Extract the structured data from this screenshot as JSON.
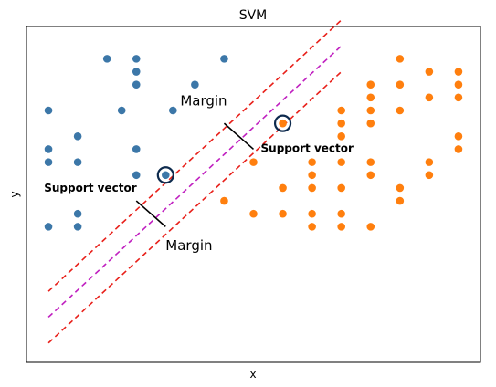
{
  "chart_data": {
    "type": "scatter",
    "title": "SVM",
    "xlabel": "x",
    "ylabel": "y",
    "xlim": [
      0,
      31
    ],
    "ylim": [
      0,
      26
    ],
    "grid": false,
    "ticks": "none",
    "colors": {
      "class_a": "#3c77a8",
      "class_b": "#ff7f0e",
      "boundary": "#c020c0",
      "margin_line": "#e8201a",
      "margin_marker": "#000000",
      "support_ring": "#0d2a4d"
    },
    "series": [
      {
        "class": "a",
        "points": [
          [
            5.5,
            23.5
          ],
          [
            7.5,
            23.5
          ],
          [
            13.5,
            23.5
          ],
          [
            7.5,
            22.5
          ],
          [
            7.5,
            21.5
          ],
          [
            11.5,
            21.5
          ],
          [
            1.5,
            19.5
          ],
          [
            6.5,
            19.5
          ],
          [
            10,
            19.5
          ],
          [
            3.5,
            17.5
          ],
          [
            1.5,
            16.5
          ],
          [
            7.5,
            16.5
          ],
          [
            1.5,
            15.5
          ],
          [
            3.5,
            15.5
          ],
          [
            7.5,
            14.5
          ],
          [
            9.5,
            14.5
          ],
          [
            3.5,
            11.5
          ],
          [
            1.5,
            10.5
          ],
          [
            3.5,
            10.5
          ]
        ]
      },
      {
        "class": "b",
        "points": [
          [
            25.5,
            23.5
          ],
          [
            27.5,
            22.5
          ],
          [
            29.5,
            22.5
          ],
          [
            23.5,
            21.5
          ],
          [
            25.5,
            21.5
          ],
          [
            29.5,
            21.5
          ],
          [
            27.5,
            20.5
          ],
          [
            23.5,
            20.5
          ],
          [
            29.5,
            20.5
          ],
          [
            21.5,
            19.5
          ],
          [
            23.5,
            19.5
          ],
          [
            25.5,
            19.5
          ],
          [
            21.5,
            18.5
          ],
          [
            23.5,
            18.5
          ],
          [
            17.5,
            18.5
          ],
          [
            21.5,
            17.5
          ],
          [
            29.5,
            17.5
          ],
          [
            29.5,
            16.5
          ],
          [
            15.5,
            15.5
          ],
          [
            19.5,
            15.5
          ],
          [
            21.5,
            15.5
          ],
          [
            23.5,
            15.5
          ],
          [
            27.5,
            15.5
          ],
          [
            19.5,
            14.5
          ],
          [
            23.5,
            14.5
          ],
          [
            27.5,
            14.5
          ],
          [
            17.5,
            13.5
          ],
          [
            19.5,
            13.5
          ],
          [
            21.5,
            13.5
          ],
          [
            25.5,
            13.5
          ],
          [
            13.5,
            12.5
          ],
          [
            25.5,
            12.5
          ],
          [
            15.5,
            11.5
          ],
          [
            17.5,
            11.5
          ],
          [
            19.5,
            11.5
          ],
          [
            21.5,
            11.5
          ],
          [
            19.5,
            10.5
          ],
          [
            21.5,
            10.5
          ],
          [
            23.5,
            10.5
          ]
        ]
      }
    ],
    "support_vectors": [
      [
        9.5,
        14.5
      ],
      [
        17.5,
        18.5
      ]
    ],
    "decision_boundary": [
      [
        1.5,
        3.5
      ],
      [
        21.5,
        24.5
      ]
    ],
    "margin_lines": [
      [
        [
          1.5,
          1.5
        ],
        [
          21.5,
          22.5
        ]
      ],
      [
        [
          1.5,
          5.5
        ],
        [
          21.5,
          26.5
        ]
      ]
    ],
    "margin_markers": [
      [
        [
          13.5,
          18.5
        ],
        [
          15.5,
          16.5
        ]
      ],
      [
        [
          7.5,
          12.5
        ],
        [
          9.5,
          10.5
        ]
      ]
    ],
    "annotations": [
      {
        "text": "Margin",
        "x": 10.5,
        "y": 19.9,
        "bold": false
      },
      {
        "text": "Support vector",
        "x": 16,
        "y": 16.3,
        "bold": true
      },
      {
        "text": "Support vector",
        "x": 1.2,
        "y": 13.2,
        "bold": true
      },
      {
        "text": "Margin",
        "x": 9.5,
        "y": 8.7,
        "bold": false
      }
    ]
  }
}
